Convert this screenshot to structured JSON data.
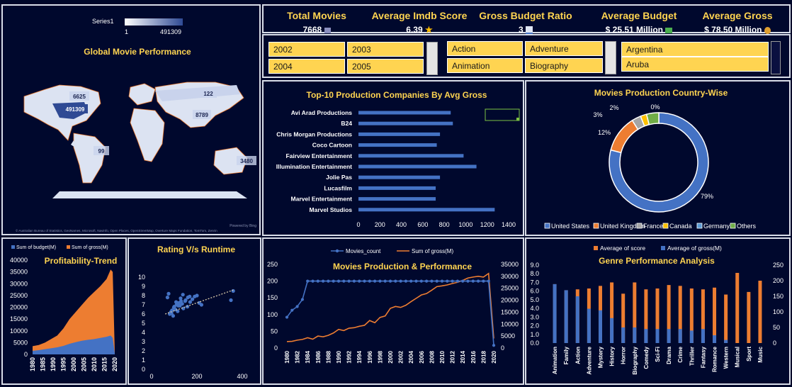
{
  "map_panel": {
    "title": "Global Movie Performance",
    "legend_series": "Series1",
    "legend_min": "1",
    "legend_max": "491309",
    "labels": [
      "6625",
      "491309",
      "122",
      "8789",
      "99",
      "3480"
    ],
    "attribution": "© Australian Bureau of Statistics, GeoNames, Microsoft, Navinfo, Open Places, OpenStreetMap, Overture Maps Fundation, TomTom, Zenrin",
    "powered": "Powered by Bing"
  },
  "kpis": [
    {
      "label": "Total Movies",
      "value": "7668",
      "icon": "clapperboard-icon"
    },
    {
      "label": "Average Imdb Score",
      "value": "6.39",
      "icon": "star-icon"
    },
    {
      "label": "Gross Budget Ratio",
      "value": "3",
      "icon": "chart-up-icon"
    },
    {
      "label": "Average Budget",
      "value": "$ 25.51 Million",
      "icon": "money-wings-icon"
    },
    {
      "label": "Average Gross",
      "value": "$ 78.50 Million",
      "icon": "money-bag-icon"
    }
  ],
  "slicers": {
    "years": [
      "2002",
      "2003",
      "2004",
      "2005"
    ],
    "genres": [
      "Action",
      "Adventure",
      "Animation",
      "Biography"
    ],
    "countries": [
      "Argentina",
      "Aruba"
    ]
  },
  "colors": {
    "blue": "#4472c4",
    "orange": "#ed7d31",
    "gray": "#a5a5a5",
    "gold": "#ffc000",
    "yellow_title": "#ffd451",
    "green": "#70ad47",
    "steel": "#5b9bd5"
  },
  "charts": {
    "production_companies": {
      "title": "Top-10 Production Companies By Avg Gross",
      "x_ticks": [
        "0",
        "200",
        "400",
        "600",
        "800",
        "1000",
        "1200",
        "1400"
      ]
    },
    "country": {
      "title": "Movies Production Country-Wise"
    },
    "profit": {
      "title": "Profitability-Trend",
      "legend": [
        "Sum of budget(M)",
        "Sum of gross(M)"
      ],
      "y_ticks": [
        "40000",
        "35000",
        "30000",
        "25000",
        "20000",
        "15000",
        "10000",
        "5000",
        "0"
      ],
      "x_ticks": [
        "1980",
        "1985",
        "1990",
        "1995",
        "2000",
        "2005",
        "2010",
        "2015",
        "2020"
      ]
    },
    "rating": {
      "title": "Rating V/s Runtime",
      "y_ticks": [
        "10",
        "9",
        "8",
        "7",
        "6",
        "5",
        "4",
        "3",
        "2",
        "1",
        "0"
      ],
      "x_ticks": [
        "0",
        "200",
        "400"
      ]
    },
    "production": {
      "title": "Movies Production & Performance",
      "legend": [
        "Movies_count",
        "Sum of gross(M)"
      ],
      "y_left": [
        "250",
        "200",
        "150",
        "100",
        "50",
        "0"
      ],
      "y_right": [
        "35000",
        "30000",
        "25000",
        "20000",
        "15000",
        "10000",
        "5000",
        "0"
      ],
      "x_ticks": [
        "1980",
        "1982",
        "1984",
        "1986",
        "1988",
        "1990",
        "1992",
        "1994",
        "1996",
        "1998",
        "2000",
        "2002",
        "2004",
        "2006",
        "2008",
        "2010",
        "2012",
        "2014",
        "2016",
        "2018",
        "2020"
      ]
    },
    "genre": {
      "title": "Genre Performance Analysis",
      "legend": [
        "Average of score",
        "Average of gross(M)"
      ],
      "y_left": [
        "9.0",
        "8.0",
        "7.0",
        "6.0",
        "5.0",
        "4.0",
        "3.0",
        "2.0",
        "1.0",
        "0.0"
      ],
      "y_right": [
        "250",
        "200",
        "150",
        "100",
        "50",
        "0"
      ]
    }
  },
  "chart_data": [
    {
      "type": "bar",
      "title": "Top-10 Production Companies By Avg Gross",
      "categories": [
        "Avi Arad Productions",
        "B24",
        "Chris Morgan Productions",
        "Coco Cartoon",
        "Fairview Entertainment",
        "Illumination Entertainment",
        "Jolie Pas",
        "Lucasfilm",
        "Marvel Entertainment",
        "Marvel Studios"
      ],
      "values": [
        860,
        880,
        760,
        730,
        980,
        1100,
        760,
        720,
        720,
        1270
      ],
      "xlim": [
        0,
        1400
      ]
    },
    {
      "type": "pie",
      "title": "Movies Production Country-Wise",
      "categories": [
        "United States",
        "United Kingdom",
        "France",
        "Canada",
        "Germany",
        "Others"
      ],
      "values": [
        79,
        12,
        3,
        2,
        0,
        4
      ]
    },
    {
      "type": "area",
      "title": "Profitability-Trend",
      "x": [
        1980,
        1983,
        1986,
        1989,
        1992,
        1995,
        1998,
        2001,
        2004,
        2007,
        2010,
        2013,
        2016,
        2018,
        2019,
        2020
      ],
      "series": [
        {
          "name": "Sum of budget(M)",
          "values": [
            1500,
            1800,
            2200,
            2600,
            3000,
            3600,
            4500,
            5200,
            5800,
            6200,
            6500,
            7000,
            7500,
            8000,
            7000,
            500
          ]
        },
        {
          "name": "Sum of gross(M)",
          "values": [
            3500,
            4000,
            5000,
            6500,
            8000,
            11000,
            15000,
            18000,
            21000,
            24000,
            26500,
            29000,
            32000,
            36000,
            35000,
            1000
          ]
        }
      ],
      "ylim": [
        0,
        40000
      ]
    },
    {
      "type": "scatter",
      "title": "Rating V/s Runtime",
      "ylim": [
        0,
        10
      ],
      "xlim": [
        0,
        400
      ],
      "x": [
        80,
        85,
        90,
        95,
        100,
        105,
        110,
        115,
        120,
        125,
        130,
        135,
        140,
        150,
        160,
        170,
        180,
        190,
        200,
        210,
        220,
        75,
        88,
        98,
        108,
        118,
        128,
        138,
        148,
        158,
        168,
        350,
        360,
        70
      ],
      "y": [
        6.0,
        6.2,
        6.4,
        5.8,
        6.8,
        6.5,
        7.0,
        6.3,
        7.2,
        6.9,
        7.4,
        7.1,
        6.6,
        7.5,
        7.8,
        7.3,
        7.6,
        7.9,
        8.0,
        7.2,
        7.0,
        8.2,
        6.1,
        6.7,
        7.3,
        6.9,
        7.7,
        8.1,
        7.4,
        6.8,
        7.9,
        7.5,
        8.5,
        7.8
      ]
    },
    {
      "type": "line",
      "title": "Movies Production & Performance",
      "x": [
        1980,
        1981,
        1982,
        1983,
        1984,
        1985,
        1986,
        1987,
        1988,
        1989,
        1990,
        1991,
        1992,
        1993,
        1994,
        1995,
        1996,
        1997,
        1998,
        1999,
        2000,
        2001,
        2002,
        2003,
        2004,
        2005,
        2006,
        2007,
        2008,
        2009,
        2010,
        2011,
        2012,
        2013,
        2014,
        2015,
        2016,
        2017,
        2018,
        2019,
        2020
      ],
      "series": [
        {
          "name": "Movies_count",
          "axis": "left",
          "values": [
            92,
            113,
            124,
            145,
            200,
            200,
            200,
            200,
            200,
            200,
            200,
            200,
            200,
            200,
            200,
            200,
            200,
            200,
            200,
            200,
            200,
            200,
            200,
            200,
            200,
            200,
            200,
            200,
            200,
            200,
            200,
            200,
            200,
            200,
            200,
            200,
            200,
            200,
            200,
            200,
            8
          ]
        },
        {
          "name": "Sum of gross(M)",
          "axis": "right",
          "values": [
            2700,
            2800,
            3300,
            3600,
            4300,
            3700,
            5000,
            4700,
            5300,
            6300,
            7800,
            7300,
            8300,
            8500,
            9100,
            9500,
            11500,
            10600,
            12800,
            13400,
            16600,
            17400,
            17000,
            17900,
            19400,
            20800,
            22200,
            22800,
            24200,
            25700,
            26000,
            26400,
            27000,
            27500,
            28300,
            29300,
            29700,
            30000,
            29700,
            31200,
            4000
          ]
        }
      ],
      "ylim": [
        0,
        250
      ],
      "y2lim": [
        0,
        35000
      ]
    },
    {
      "type": "bar",
      "title": "Genre Performance Analysis",
      "categories": [
        "Animation",
        "Family",
        "Action",
        "Adventure",
        "Mystery",
        "History",
        "Horror",
        "Biography",
        "Comedy",
        "Sci-Fi",
        "Drama",
        "Crime",
        "Thriller",
        "Fantasy",
        "Romance",
        "Western",
        "Musical",
        "Sport",
        "Music"
      ],
      "series": [
        {
          "name": "Average of score",
          "values": [
            6.8,
            6.1,
            6.2,
            6.3,
            6.6,
            7.0,
            5.7,
            7.0,
            6.2,
            6.3,
            6.7,
            6.6,
            6.3,
            6.2,
            6.4,
            5.6,
            8.1,
            5.9,
            7.2
          ]
        },
        {
          "name": "Average of gross(M)",
          "values": [
            240,
            200,
            150,
            110,
            105,
            80,
            50,
            50,
            45,
            45,
            45,
            45,
            40,
            45,
            25,
            10,
            0,
            0,
            0
          ]
        }
      ],
      "ylim": [
        0,
        9
      ],
      "y2lim": [
        0,
        250
      ]
    }
  ]
}
